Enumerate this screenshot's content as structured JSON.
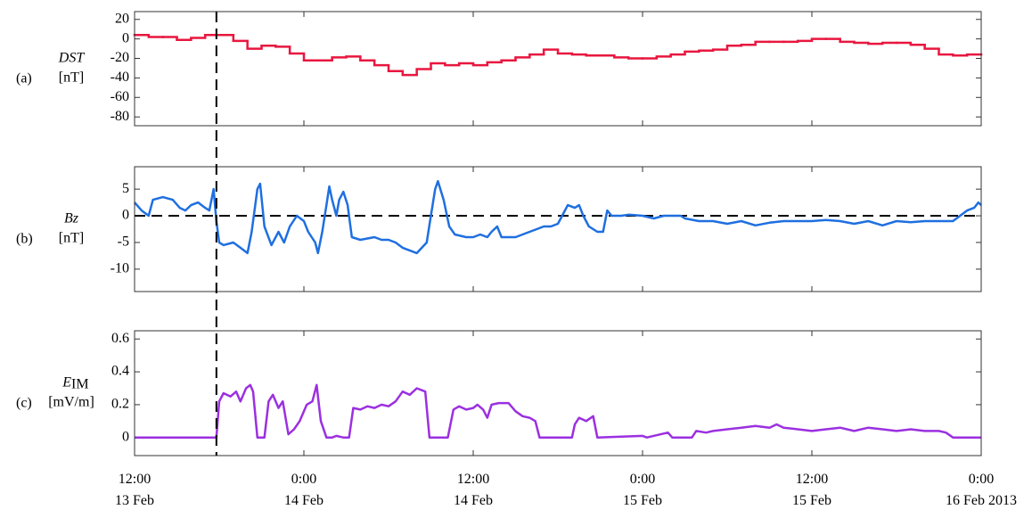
{
  "chart_data": [
    {
      "type": "step",
      "panel_label": "(a)",
      "ylabel": "DST",
      "unit": "[nT]",
      "color": "#e8173f",
      "x": [
        0,
        1,
        2,
        3,
        4,
        5,
        6,
        7,
        8,
        9,
        10,
        11,
        12,
        13,
        14,
        15,
        16,
        17,
        18,
        19,
        20,
        21,
        22,
        23,
        24,
        25,
        26,
        27,
        28,
        29,
        30,
        31,
        32,
        33,
        34,
        35,
        36,
        37,
        38,
        39,
        40,
        41,
        42,
        43,
        44,
        45,
        46,
        47,
        48,
        49,
        50,
        51,
        52,
        53,
        54,
        55,
        56,
        57,
        58,
        59
      ],
      "values": [
        4,
        2,
        2,
        -1,
        1,
        4,
        4,
        -2,
        -10,
        -7,
        -8,
        -15,
        -22,
        -22,
        -19,
        -18,
        -22,
        -27,
        -33,
        -37,
        -31,
        -25,
        -27,
        -25,
        -27,
        -24,
        -22,
        -19,
        -16,
        -11,
        -15,
        -16,
        -17,
        -17,
        -19,
        -20,
        -20,
        -18,
        -16,
        -13,
        -12,
        -11,
        -7,
        -6,
        -3,
        -3,
        -3,
        -2,
        0,
        0,
        -3,
        -4,
        -5,
        -4,
        -4,
        -6,
        -10,
        -16,
        -17,
        -16
      ],
      "xlim": [
        0,
        60
      ],
      "ylim": [
        -89,
        28
      ],
      "yticks": [
        -80,
        -60,
        -40,
        -20,
        0,
        20
      ],
      "marker_x": 5.8
    },
    {
      "type": "line",
      "panel_label": "(b)",
      "ylabel": "Bz",
      "unit": "[nT]",
      "color": "#1f6fe0",
      "x": [
        0,
        0.5,
        1,
        1.3,
        2,
        2.7,
        3.2,
        3.6,
        4,
        4.5,
        5,
        5.3,
        5.6,
        5.8,
        6,
        6.3,
        7,
        7.5,
        8,
        8.3,
        8.7,
        8.9,
        9.2,
        9.7,
        10.2,
        10.6,
        11,
        11.5,
        12,
        12.3,
        12.8,
        13,
        13.3,
        13.6,
        13.8,
        14,
        14.3,
        14.5,
        14.8,
        15.1,
        15.4,
        16,
        17,
        17.5,
        18,
        18.5,
        19,
        19.5,
        20,
        20.7,
        21,
        21.3,
        21.5,
        21.9,
        22.3,
        22.7,
        23.5,
        24,
        24.5,
        25,
        25.3,
        25.7,
        26,
        27,
        27.5,
        28,
        28.5,
        29,
        29.5,
        30,
        30.3,
        30.7,
        31.2,
        31.5,
        31.8,
        32.2,
        32.8,
        33.2,
        33.5,
        33.8,
        34.5,
        35,
        36,
        36.8,
        37.5,
        38,
        38.7,
        39,
        40,
        41,
        42,
        43,
        44,
        45,
        46,
        47,
        48,
        49,
        50,
        51,
        52,
        53,
        54,
        55,
        56,
        57,
        58,
        58.5,
        59,
        59.5,
        59.8,
        60
      ],
      "values": [
        2.5,
        1,
        0,
        3,
        3.5,
        3,
        1.5,
        1,
        2,
        2.5,
        1.5,
        1,
        5,
        -1,
        -5,
        -5.5,
        -5,
        -6,
        -7,
        -3,
        5,
        6,
        -2,
        -5.5,
        -3,
        -5,
        -2,
        0,
        -1,
        -3,
        -5,
        -7,
        -3,
        2,
        5.5,
        3,
        0,
        3,
        4.5,
        2,
        -4,
        -4.5,
        -4,
        -4.5,
        -4.5,
        -5,
        -6,
        -6.5,
        -7,
        -5,
        0,
        5,
        6.5,
        3,
        -2,
        -3.5,
        -4,
        -4,
        -3.5,
        -4,
        -3,
        -2,
        -4,
        -4,
        -3.5,
        -3,
        -2.5,
        -2,
        -2,
        -1.5,
        0,
        2,
        1.5,
        2,
        0,
        -2,
        -3,
        -3,
        1,
        0,
        0,
        0.2,
        0,
        -0.5,
        0,
        0,
        0,
        -0.5,
        -1,
        -1,
        -1.5,
        -1,
        -1.8,
        -1.3,
        -1,
        -1,
        -1,
        -0.8,
        -1,
        -1.5,
        -1,
        -1.8,
        -1,
        -1.2,
        -1,
        -1,
        -1,
        0,
        1,
        1.5,
        2.5,
        2
      ],
      "xlim": [
        0,
        60
      ],
      "ylim": [
        -14.2,
        9.2
      ],
      "yticks": [
        -10,
        -5,
        0,
        5
      ],
      "hline": 0
    },
    {
      "type": "line",
      "panel_label": "(c)",
      "ylabel": "E",
      "ylabel_sub": "IM",
      "unit": "[mV/m]",
      "color": "#9b30e0",
      "x": [
        0,
        5.8,
        6,
        6.3,
        6.8,
        7.2,
        7.5,
        7.9,
        8.2,
        8.4,
        8.7,
        9.2,
        9.5,
        9.8,
        10.2,
        10.5,
        10.9,
        11.3,
        11.7,
        12.2,
        12.6,
        12.9,
        13.2,
        13.6,
        14,
        14.3,
        14.8,
        15.2,
        15.5,
        16,
        16.5,
        17,
        17.5,
        18,
        18.5,
        19,
        19.5,
        20,
        20.6,
        20.9,
        22.2,
        22.6,
        23,
        23.5,
        24,
        24.3,
        24.7,
        25,
        25.3,
        25.8,
        26.5,
        27,
        27.5,
        28,
        28.4,
        28.7,
        31,
        31.2,
        31.5,
        32,
        32.5,
        32.8,
        36,
        36.3,
        37.8,
        38.1,
        39.5,
        39.8,
        40.5,
        41,
        42,
        43,
        44,
        45,
        45.5,
        46,
        47,
        48,
        49,
        50,
        51,
        52,
        53,
        54,
        55,
        56,
        57,
        57.5,
        58,
        60
      ],
      "values": [
        0,
        0,
        0.22,
        0.27,
        0.25,
        0.28,
        0.22,
        0.3,
        0.32,
        0.28,
        0,
        0,
        0.22,
        0.26,
        0.18,
        0.22,
        0.02,
        0.05,
        0.1,
        0.2,
        0.22,
        0.32,
        0.1,
        0,
        0,
        0.01,
        0,
        0,
        0.18,
        0.17,
        0.19,
        0.18,
        0.2,
        0.19,
        0.22,
        0.28,
        0.26,
        0.3,
        0.28,
        0,
        0,
        0.17,
        0.19,
        0.17,
        0.18,
        0.2,
        0.17,
        0.12,
        0.2,
        0.21,
        0.21,
        0.16,
        0.13,
        0.12,
        0.1,
        0,
        0,
        0.08,
        0.12,
        0.1,
        0.13,
        0,
        0.01,
        0,
        0.03,
        0,
        0,
        0.04,
        0.03,
        0.04,
        0.05,
        0.06,
        0.07,
        0.06,
        0.08,
        0.06,
        0.05,
        0.04,
        0.05,
        0.06,
        0.04,
        0.06,
        0.05,
        0.04,
        0.05,
        0.04,
        0.04,
        0.03,
        0,
        0
      ],
      "xlim": [
        0,
        60
      ],
      "ylim": [
        -0.11,
        0.65
      ],
      "yticks": [
        0,
        0.2,
        0.4,
        0.6
      ],
      "xticks": [
        {
          "value": 0,
          "label": "12:00\n13 Feb"
        },
        {
          "value": 12,
          "label": "0:00\n14 Feb"
        },
        {
          "value": 24,
          "label": "12:00\n14 Feb"
        },
        {
          "value": 36,
          "label": "0:00\n15 Feb"
        },
        {
          "value": 48,
          "label": "12:00\n15 Feb"
        },
        {
          "value": 60,
          "label": "0:00\n16 Feb 2013"
        }
      ]
    }
  ]
}
